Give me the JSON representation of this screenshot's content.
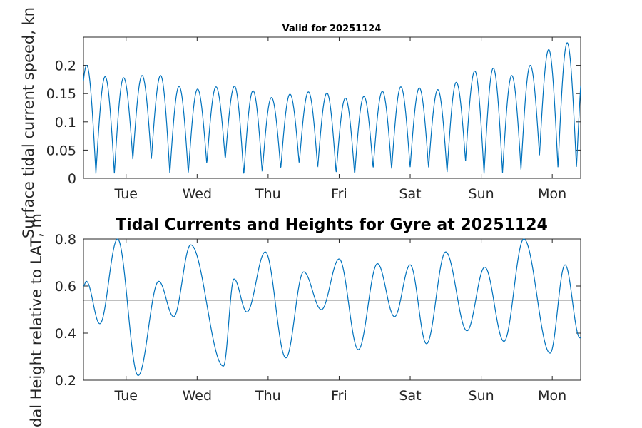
{
  "chart_data": [
    {
      "type": "line",
      "title": "Valid for 20251124",
      "ylabel": "Surface tidal current speed, kn",
      "xlabel": "",
      "x_tick_labels": [
        "Tue",
        "Wed",
        "Thu",
        "Fri",
        "Sat",
        "Sun",
        "Mon"
      ],
      "xlim_days": [
        0,
        7
      ],
      "x_tick_days": [
        0.6,
        1.6,
        2.6,
        3.6,
        4.6,
        5.6,
        6.6
      ],
      "ylim": [
        0,
        0.25
      ],
      "y_ticks": [
        0,
        0.05,
        0.1,
        0.15,
        0.2
      ],
      "y_tick_labels": [
        "0",
        "0.05",
        "0.1",
        "0.15",
        "0.2"
      ],
      "series": [
        {
          "color": "#0072BD",
          "peaks": [
            0.2,
            0.18,
            0.178,
            0.182,
            0.182,
            0.163,
            0.158,
            0.162,
            0.163,
            0.155,
            0.143,
            0.149,
            0.153,
            0.151,
            0.142,
            0.145,
            0.154,
            0.162,
            0.16,
            0.157,
            0.17,
            0.19,
            0.195,
            0.182,
            0.2,
            0.228,
            0.24
          ],
          "troughs": [
            0.008,
            0.008,
            0.033,
            0.033,
            0.008,
            0.008,
            0.025,
            0.033,
            0.005,
            0.01,
            0.016,
            0.025,
            0.018,
            0.008,
            0.006,
            0.017,
            0.015,
            0.018,
            0.018,
            0.01,
            0.03,
            0.008,
            0.01,
            0.015,
            0.04,
            0.018
          ]
        }
      ]
    },
    {
      "type": "line",
      "title": "Tidal Currents and Heights for Gyre at 20251124",
      "ylabel": "Tidal Height relative to LAT, m",
      "xlabel": "",
      "x_tick_labels": [
        "Tue",
        "Wed",
        "Thu",
        "Fri",
        "Sat",
        "Sun",
        "Mon"
      ],
      "xlim_days": [
        0,
        7
      ],
      "x_tick_days": [
        0.6,
        1.6,
        2.6,
        3.6,
        4.6,
        5.6,
        6.6
      ],
      "ylim": [
        0.2,
        0.8
      ],
      "y_ticks": [
        0.2,
        0.4,
        0.6,
        0.8
      ],
      "y_tick_labels": [
        "0.2",
        "0.4",
        "0.6",
        "0.8"
      ],
      "reference_line": 0.54,
      "series": [
        {
          "color": "#0072BD",
          "extrema_days": [
            0.0,
            0.04,
            0.23,
            0.48,
            0.77,
            1.06,
            1.27,
            1.51,
            1.97,
            2.12,
            2.3,
            2.56,
            2.85,
            3.1,
            3.35,
            3.6,
            3.87,
            4.14,
            4.38,
            4.6,
            4.83,
            5.1,
            5.4,
            5.65,
            5.92,
            6.2,
            6.57,
            6.78,
            6.99
          ],
          "extrema_values": [
            0.6,
            0.62,
            0.44,
            0.8,
            0.22,
            0.62,
            0.47,
            0.775,
            0.26,
            0.63,
            0.49,
            0.745,
            0.295,
            0.66,
            0.5,
            0.715,
            0.33,
            0.695,
            0.47,
            0.69,
            0.355,
            0.745,
            0.41,
            0.68,
            0.365,
            0.8,
            0.315,
            0.69,
            0.38
          ]
        }
      ]
    }
  ]
}
